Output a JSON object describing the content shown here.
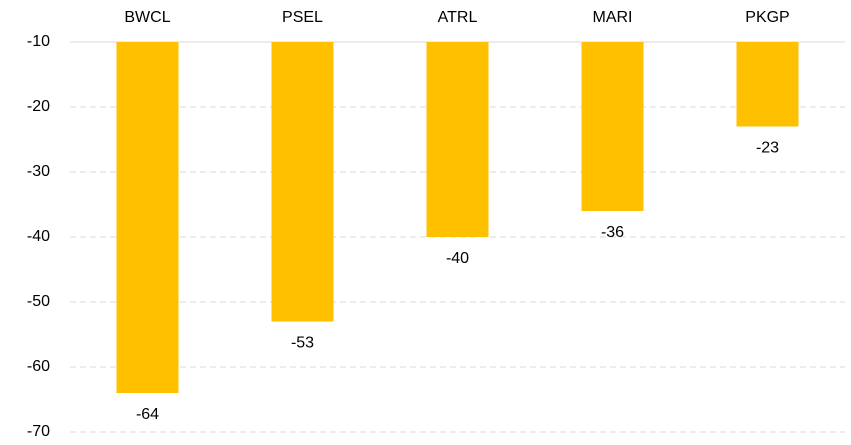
{
  "chart_data": {
    "type": "bar",
    "categories": [
      "BWCL",
      "PSEL",
      "ATRL",
      "MARI",
      "PKGP"
    ],
    "values": [
      -64,
      -53,
      -40,
      -36,
      -23
    ],
    "color": "#ffc000",
    "ylim": [
      -70,
      -10
    ],
    "yticks": [
      -70,
      -60,
      -50,
      -40,
      -30,
      -20,
      -10
    ],
    "grid": true
  }
}
